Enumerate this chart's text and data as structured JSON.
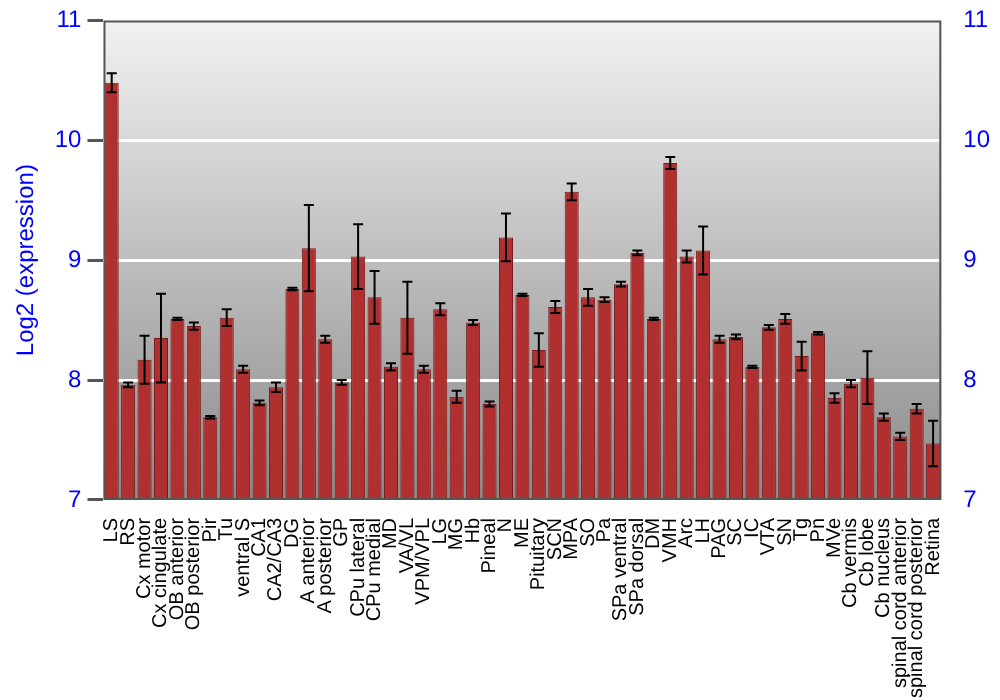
{
  "chart_data": {
    "type": "bar",
    "ylabel": "Log2 (expression)",
    "categories": [
      "LS",
      "RS",
      "Cx motor",
      "Cx cingulate",
      "OB anterior",
      "OB posterior",
      "Pir",
      "Tu",
      "ventral S",
      "CA1",
      "CA2/CA3",
      "DG",
      "A anterior",
      "A posterior",
      "GP",
      "CPu lateral",
      "CPu medial",
      "MD",
      "VA/VL",
      "VPM/VPL",
      "LG",
      "MG",
      "Hb",
      "Pineal",
      "N",
      "ME",
      "Pituitary",
      "SCN",
      "MPA",
      "SO",
      "Pa",
      "SPa ventral",
      "SPa dorsal",
      "DM",
      "VMH",
      "Arc",
      "LH",
      "PAG",
      "SC",
      "IC",
      "VTA",
      "SN",
      "Tg",
      "Pn",
      "MVe",
      "Cb vermis",
      "Cb lobe",
      "Cb nucleus",
      "spinal cord anterior",
      "spinal cord posterior",
      "Retina"
    ],
    "values": [
      10.48,
      7.96,
      8.17,
      8.35,
      8.51,
      8.45,
      7.69,
      8.52,
      8.09,
      7.81,
      7.94,
      8.76,
      9.1,
      8.34,
      7.98,
      9.03,
      8.69,
      8.11,
      8.52,
      8.09,
      8.59,
      7.86,
      8.48,
      7.8,
      9.19,
      8.71,
      8.25,
      8.61,
      9.57,
      8.69,
      8.67,
      8.8,
      9.06,
      8.51,
      9.81,
      9.03,
      9.08,
      8.34,
      8.36,
      8.11,
      8.44,
      8.51,
      8.2,
      8.39,
      7.85,
      7.97,
      8.02,
      7.69,
      7.53,
      7.76,
      7.47
    ],
    "errors": [
      0.08,
      0.02,
      0.2,
      0.37,
      0.01,
      0.03,
      0.01,
      0.07,
      0.03,
      0.02,
      0.04,
      0.01,
      0.36,
      0.03,
      0.02,
      0.27,
      0.22,
      0.03,
      0.3,
      0.03,
      0.05,
      0.05,
      0.02,
      0.02,
      0.2,
      0.01,
      0.14,
      0.05,
      0.07,
      0.07,
      0.02,
      0.02,
      0.02,
      0.01,
      0.05,
      0.05,
      0.2,
      0.03,
      0.02,
      0.01,
      0.02,
      0.04,
      0.12,
      0.01,
      0.04,
      0.03,
      0.22,
      0.03,
      0.03,
      0.04,
      0.19
    ],
    "color": "#b03030",
    "ylim": [
      7,
      11
    ],
    "yticks": [
      7,
      8,
      9,
      10,
      11
    ],
    "y2lim": [
      7,
      11
    ],
    "y2ticks": [
      7,
      8,
      9,
      10,
      11
    ],
    "grid": "y",
    "legend": false
  }
}
